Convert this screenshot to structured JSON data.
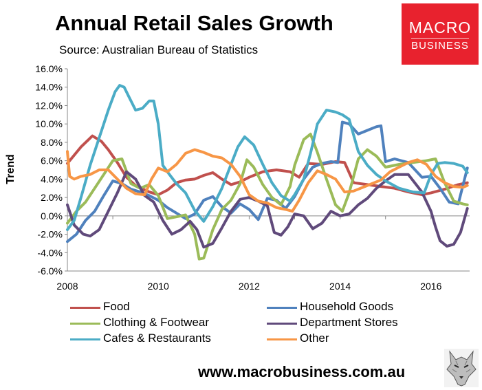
{
  "header": {
    "title": "Annual Retail Sales Growth",
    "source": "Source: Australian Bureau of Statistics"
  },
  "logo": {
    "line1": "MACRO",
    "line2": "BUSINESS",
    "color": "#e8222e"
  },
  "footer": {
    "website": "www.macrobusiness.com.au"
  },
  "chart_data": {
    "type": "line",
    "title": "Annual Retail Sales Growth",
    "ylabel": "Trend",
    "xlabel": "",
    "xlim": [
      2008,
      2016.85
    ],
    "ylim": [
      -6,
      16
    ],
    "x_ticks": [
      "2008",
      "2010",
      "2012",
      "2014",
      "2016"
    ],
    "y_ticks": [
      "16.0%",
      "14.0%",
      "12.0%",
      "10.0%",
      "8.0%",
      "6.0%",
      "4.0%",
      "2.0%",
      "0.0%",
      "-2.0%",
      "-4.0%",
      "-6.0%"
    ],
    "grid": false,
    "legend_position": "bottom",
    "series": [
      {
        "name": "Food",
        "color": "#c0504d",
        "x": [
          2008.0,
          2008.3,
          2008.55,
          2008.75,
          2008.9,
          2009.1,
          2009.3,
          2009.5,
          2009.8,
          2010.0,
          2010.2,
          2010.4,
          2010.6,
          2010.8,
          2011.0,
          2011.2,
          2011.4,
          2011.6,
          2011.8,
          2012.0,
          2012.3,
          2012.6,
          2012.9,
          2013.1,
          2013.3,
          2013.6,
          2013.9,
          2014.1,
          2014.3,
          2014.6,
          2014.9,
          2015.2,
          2015.5,
          2015.8,
          2016.0,
          2016.3,
          2016.6,
          2016.8
        ],
        "values": [
          5.7,
          7.5,
          8.7,
          8.1,
          7.2,
          5.8,
          4.2,
          3.3,
          2.6,
          2.3,
          2.8,
          3.6,
          3.9,
          4.0,
          4.4,
          4.7,
          4.0,
          3.4,
          3.7,
          4.2,
          4.8,
          5.0,
          4.8,
          4.2,
          5.7,
          5.6,
          5.9,
          5.8,
          3.6,
          3.4,
          3.2,
          3.0,
          2.6,
          2.3,
          2.5,
          2.9,
          3.4,
          3.6
        ]
      },
      {
        "name": "Household Goods",
        "color": "#4f81bd",
        "x": [
          2008.0,
          2008.2,
          2008.4,
          2008.6,
          2008.8,
          2009.0,
          2009.2,
          2009.4,
          2009.6,
          2009.8,
          2010.0,
          2010.2,
          2010.4,
          2010.6,
          2010.8,
          2011.0,
          2011.2,
          2011.4,
          2011.6,
          2011.8,
          2012.0,
          2012.2,
          2012.4,
          2012.6,
          2012.8,
          2013.0,
          2013.2,
          2013.4,
          2013.6,
          2013.8,
          2013.95,
          2014.05,
          2014.2,
          2014.4,
          2014.6,
          2014.8,
          2014.9,
          2015.0,
          2015.2,
          2015.5,
          2015.8,
          2016.0,
          2016.2,
          2016.4,
          2016.6,
          2016.8
        ],
        "values": [
          -2.8,
          -2.0,
          -0.5,
          0.5,
          2.2,
          3.8,
          3.5,
          2.9,
          2.6,
          2.2,
          1.7,
          0.9,
          0.3,
          -0.3,
          0.2,
          1.7,
          2.1,
          1.0,
          0.3,
          1.3,
          0.7,
          -0.4,
          1.9,
          1.7,
          0.8,
          2.1,
          4.0,
          5.3,
          5.7,
          5.9,
          5.8,
          10.2,
          10.0,
          8.9,
          9.3,
          9.7,
          9.8,
          5.9,
          6.2,
          5.8,
          4.2,
          4.3,
          3.0,
          1.5,
          1.3,
          5.2
        ]
      },
      {
        "name": "Clothing & Footwear",
        "color": "#9bbb59",
        "x": [
          2008.0,
          2008.2,
          2008.4,
          2008.6,
          2008.8,
          2009.0,
          2009.2,
          2009.4,
          2009.6,
          2009.8,
          2010.0,
          2010.2,
          2010.4,
          2010.6,
          2010.8,
          2010.9,
          2011.0,
          2011.2,
          2011.4,
          2011.6,
          2011.8,
          2011.95,
          2012.1,
          2012.3,
          2012.5,
          2012.7,
          2012.9,
          2013.0,
          2013.2,
          2013.35,
          2013.5,
          2013.7,
          2013.9,
          2014.05,
          2014.2,
          2014.4,
          2014.6,
          2014.8,
          2015.0,
          2015.3,
          2015.6,
          2015.9,
          2016.1,
          2016.3,
          2016.5,
          2016.7,
          2016.8
        ],
        "values": [
          -0.8,
          0.5,
          1.5,
          3.0,
          4.5,
          6.0,
          6.2,
          3.5,
          3.0,
          3.4,
          2.2,
          -0.3,
          -0.1,
          0.1,
          -2.0,
          -4.7,
          -4.6,
          -1.5,
          0.7,
          1.7,
          3.5,
          6.1,
          5.3,
          3.4,
          2.0,
          1.2,
          3.2,
          5.5,
          8.3,
          8.9,
          6.9,
          4.0,
          1.2,
          0.5,
          2.5,
          6.2,
          7.2,
          6.5,
          5.3,
          5.6,
          5.8,
          6.0,
          6.2,
          3.6,
          1.6,
          1.3,
          1.2
        ]
      },
      {
        "name": "Department Stores",
        "color": "#604a7b",
        "x": [
          2008.0,
          2008.15,
          2008.35,
          2008.5,
          2008.7,
          2008.9,
          2009.1,
          2009.3,
          2009.5,
          2009.7,
          2009.9,
          2010.1,
          2010.3,
          2010.5,
          2010.7,
          2010.85,
          2011.0,
          2011.2,
          2011.4,
          2011.6,
          2011.8,
          2012.0,
          2012.2,
          2012.4,
          2012.55,
          2012.7,
          2012.85,
          2013.0,
          2013.2,
          2013.4,
          2013.6,
          2013.8,
          2014.0,
          2014.2,
          2014.4,
          2014.6,
          2014.8,
          2015.0,
          2015.2,
          2015.5,
          2015.8,
          2016.0,
          2016.1,
          2016.2,
          2016.35,
          2016.5,
          2016.65,
          2016.8
        ],
        "values": [
          1.2,
          -1.0,
          -2.0,
          -2.2,
          -1.5,
          0.5,
          2.5,
          4.8,
          4.0,
          2.2,
          1.5,
          -0.5,
          -2.0,
          -1.5,
          -0.6,
          -1.5,
          -3.4,
          -3.0,
          -1.3,
          0.5,
          1.8,
          2.0,
          1.6,
          1.1,
          -1.8,
          -2.1,
          -1.2,
          0.2,
          0.0,
          -1.4,
          -0.8,
          0.5,
          0.0,
          0.2,
          1.2,
          1.9,
          3.0,
          3.8,
          4.5,
          4.5,
          2.6,
          0.5,
          -1.2,
          -2.7,
          -3.3,
          -3.1,
          -1.8,
          0.8
        ]
      },
      {
        "name": "Cafes & Restaurants",
        "color": "#4bacc6",
        "x": [
          2008.0,
          2008.15,
          2008.3,
          2008.5,
          2008.7,
          2008.9,
          2009.05,
          2009.15,
          2009.25,
          2009.35,
          2009.5,
          2009.65,
          2009.8,
          2009.9,
          2010.0,
          2010.1,
          2010.2,
          2010.4,
          2010.6,
          2010.8,
          2011.0,
          2011.2,
          2011.4,
          2011.6,
          2011.75,
          2011.9,
          2012.1,
          2012.3,
          2012.5,
          2012.7,
          2012.9,
          2013.0,
          2013.2,
          2013.35,
          2013.5,
          2013.7,
          2013.9,
          2014.05,
          2014.2,
          2014.4,
          2014.6,
          2014.8,
          2015.0,
          2015.3,
          2015.6,
          2015.85,
          2016.0,
          2016.15,
          2016.3,
          2016.5,
          2016.7,
          2016.8
        ],
        "values": [
          -1.5,
          -0.5,
          2.0,
          5.5,
          8.5,
          11.5,
          13.5,
          14.2,
          14.0,
          13.0,
          11.5,
          11.7,
          12.5,
          12.5,
          10.0,
          5.5,
          4.8,
          3.5,
          2.5,
          0.6,
          -0.6,
          1.0,
          3.0,
          5.6,
          7.5,
          8.6,
          7.7,
          5.6,
          3.6,
          2.2,
          1.6,
          2.3,
          4.0,
          6.8,
          10.0,
          11.5,
          11.3,
          11.0,
          10.5,
          7.0,
          5.5,
          4.5,
          3.8,
          3.0,
          2.6,
          2.5,
          4.5,
          5.7,
          5.8,
          5.7,
          5.4,
          4.7
        ]
      },
      {
        "name": "Other",
        "color": "#f79646",
        "x": [
          2008.0,
          2008.05,
          2008.15,
          2008.3,
          2008.5,
          2008.7,
          2008.9,
          2009.1,
          2009.3,
          2009.5,
          2009.7,
          2009.85,
          2010.0,
          2010.2,
          2010.4,
          2010.6,
          2010.8,
          2011.0,
          2011.2,
          2011.4,
          2011.6,
          2011.8,
          2012.0,
          2012.2,
          2012.4,
          2012.6,
          2012.8,
          2012.95,
          2013.1,
          2013.3,
          2013.5,
          2013.7,
          2013.9,
          2014.1,
          2014.3,
          2014.5,
          2014.7,
          2014.9,
          2015.1,
          2015.3,
          2015.5,
          2015.7,
          2015.9,
          2016.1,
          2016.3,
          2016.5,
          2016.7,
          2016.8
        ],
        "values": [
          7.0,
          4.3,
          4.0,
          4.3,
          4.5,
          5.0,
          5.0,
          4.0,
          3.0,
          2.4,
          2.3,
          4.0,
          5.2,
          4.8,
          5.6,
          6.8,
          7.2,
          6.9,
          6.5,
          6.3,
          5.6,
          4.3,
          2.3,
          1.6,
          1.4,
          0.9,
          0.7,
          0.5,
          1.7,
          3.6,
          4.9,
          4.5,
          4.0,
          2.6,
          2.7,
          3.1,
          3.5,
          3.9,
          4.8,
          5.3,
          5.8,
          6.1,
          5.6,
          4.3,
          3.6,
          3.2,
          3.1,
          3.3
        ]
      }
    ]
  }
}
